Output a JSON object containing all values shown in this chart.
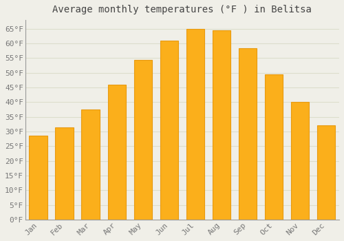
{
  "title": "Average monthly temperatures (°F ) in Belitsa",
  "months": [
    "Jan",
    "Feb",
    "Mar",
    "Apr",
    "May",
    "Jun",
    "Jul",
    "Aug",
    "Sep",
    "Oct",
    "Nov",
    "Dec"
  ],
  "values": [
    28.5,
    31.5,
    37.5,
    46.0,
    54.5,
    61.0,
    65.0,
    64.5,
    58.5,
    49.5,
    40.0,
    32.0
  ],
  "bar_color": "#FBAF1B",
  "bar_edge_color": "#E89A10",
  "background_color": "#F0EFE8",
  "grid_color": "#DDDDCC",
  "text_color": "#777777",
  "axis_color": "#999999",
  "ylim": [
    0,
    68
  ],
  "yticks": [
    0,
    5,
    10,
    15,
    20,
    25,
    30,
    35,
    40,
    45,
    50,
    55,
    60,
    65
  ],
  "title_fontsize": 10,
  "tick_fontsize": 8
}
